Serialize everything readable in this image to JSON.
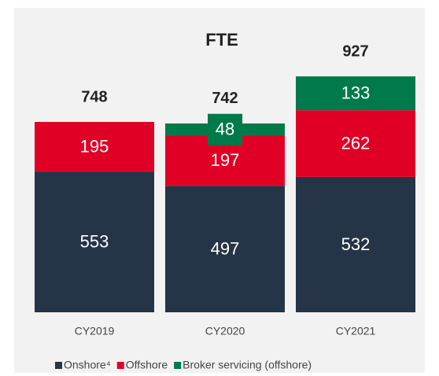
{
  "chart_data": {
    "type": "stacked-bar",
    "title": "FTE",
    "categories": [
      "CY2019",
      "CY2020",
      "CY2021"
    ],
    "series": [
      {
        "name": "Onshore⁴",
        "color": "#253447",
        "values": [
          553,
          497,
          532
        ]
      },
      {
        "name": "Offshore",
        "color": "#e00025",
        "values": [
          195,
          197,
          262
        ]
      },
      {
        "name": "Broker servicing (offshore)",
        "color": "#007a4a",
        "values": [
          null,
          48,
          133
        ]
      }
    ],
    "totals": [
      748,
      742,
      927
    ]
  }
}
